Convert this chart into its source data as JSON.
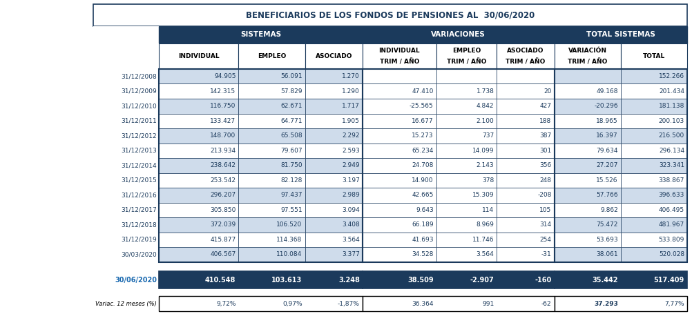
{
  "title": "BENEFICIARIOS DE LOS FONDOS DE PENSIONES AL  30/06/2020",
  "subheaders": [
    "INDIVIDUAL",
    "EMPLEO",
    "ASOCIADO",
    "INDIVIDUAL\nTRIM / AÑO",
    "EMPLEO\nTRIM / AÑO",
    "ASOCIADO\nTRIM / AÑO",
    "VARIACIÓN\nTRIM / AÑO",
    "TOTAL"
  ],
  "row_labels": [
    "31/12/2008",
    "31/12/2009",
    "31/12/2010",
    "31/12/2011",
    "31/12/2012",
    "31/12/2013",
    "31/12/2014",
    "31/12/2015",
    "31/12/2016",
    "31/12/2017",
    "31/12/2018",
    "31/12/2019",
    "30/03/2020"
  ],
  "data": [
    [
      "94.905",
      "56.091",
      "1.270",
      "",
      "",
      "",
      "",
      "152.266"
    ],
    [
      "142.315",
      "57.829",
      "1.290",
      "47.410",
      "1.738",
      "20",
      "49.168",
      "201.434"
    ],
    [
      "116.750",
      "62.671",
      "1.717",
      "-25.565",
      "4.842",
      "427",
      "-20.296",
      "181.138"
    ],
    [
      "133.427",
      "64.771",
      "1.905",
      "16.677",
      "2.100",
      "188",
      "18.965",
      "200.103"
    ],
    [
      "148.700",
      "65.508",
      "2.292",
      "15.273",
      "737",
      "387",
      "16.397",
      "216.500"
    ],
    [
      "213.934",
      "79.607",
      "2.593",
      "65.234",
      "14.099",
      "301",
      "79.634",
      "296.134"
    ],
    [
      "238.642",
      "81.750",
      "2.949",
      "24.708",
      "2.143",
      "356",
      "27.207",
      "323.341"
    ],
    [
      "253.542",
      "82.128",
      "3.197",
      "14.900",
      "378",
      "248",
      "15.526",
      "338.867"
    ],
    [
      "296.207",
      "97.437",
      "2.989",
      "42.665",
      "15.309",
      "-208",
      "57.766",
      "396.633"
    ],
    [
      "305.850",
      "97.551",
      "3.094",
      "9.643",
      "114",
      "105",
      "9.862",
      "406.495"
    ],
    [
      "372.039",
      "106.520",
      "3.408",
      "66.189",
      "8.969",
      "314",
      "75.472",
      "481.967"
    ],
    [
      "415.877",
      "114.368",
      "3.564",
      "41.693",
      "11.746",
      "254",
      "53.693",
      "533.809"
    ],
    [
      "406.567",
      "110.084",
      "3.377",
      "34.528",
      "3.564",
      "-31",
      "38.061",
      "520.028"
    ]
  ],
  "highlight_row_label": "30/06/2020",
  "highlight_data": [
    "410.548",
    "103.613",
    "3.248",
    "38.509",
    "-2.907",
    "-160",
    "35.442",
    "517.409"
  ],
  "variac_label": "Variac. 12 meses (%)",
  "variac_data": [
    "9,72%",
    "0,97%",
    "-1,87%",
    "36.364",
    "991",
    "-62",
    "37.293",
    "7,77%"
  ],
  "header_bg": "#1b3a5c",
  "header_fg": "#ffffff",
  "title_fg": "#1b3a5c",
  "row_bg_even": "#cfdceb",
  "row_bg_odd": "#ffffff",
  "border_dark": "#1b3a5c",
  "border_black": "#000000",
  "label_fg": "#1b3a5c",
  "data_fg": "#1b3a5c",
  "highlight_label_fg": "#1b6ab0",
  "variac_label_fg": "#000000"
}
